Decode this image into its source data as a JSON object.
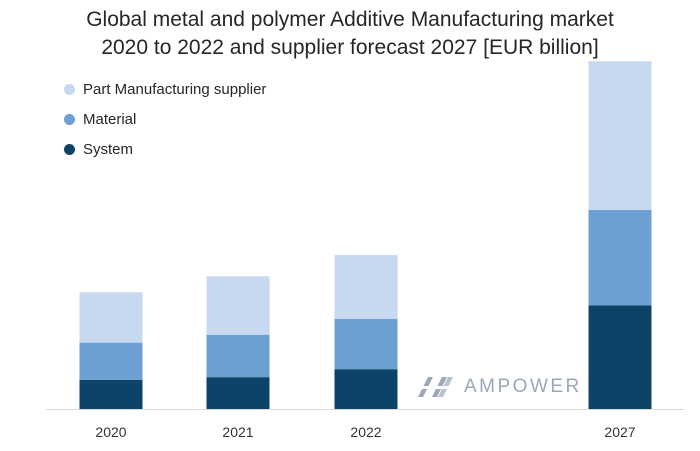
{
  "chart_title": {
    "line1": "Global metal and polymer Additive Manufacturing market",
    "line2": "2020 to 2022 and supplier forecast 2027 [EUR billion]"
  },
  "watermark": {
    "text": "AMPOWER"
  },
  "colors": {
    "system": "#0d4366",
    "material": "#6d9fd3",
    "supplier": "#c6d9ee",
    "axis": "#d9d9d9",
    "watermark": "#9aa8b8"
  },
  "chart_data": {
    "type": "bar",
    "stacked": true,
    "title": "Global metal and polymer Additive Manufacturing market 2020 to 2022 and supplier forecast 2027 [EUR billion]",
    "categories": [
      "2020",
      "2021",
      "2022",
      "2027"
    ],
    "series": [
      {
        "name": "System",
        "values": [
          1.1,
          1.2,
          1.5,
          3.9
        ]
      },
      {
        "name": "Material",
        "values": [
          1.4,
          1.6,
          1.9,
          3.6
        ]
      },
      {
        "name": "Part Manufacturing supplier",
        "values": [
          1.9,
          2.2,
          2.4,
          5.6
        ]
      }
    ],
    "legend_order": [
      "Part Manufacturing supplier",
      "Material",
      "System"
    ],
    "legend_position": "top-left",
    "ylim": [
      0,
      13.3
    ],
    "y_axis_visible": false,
    "grid": false
  }
}
